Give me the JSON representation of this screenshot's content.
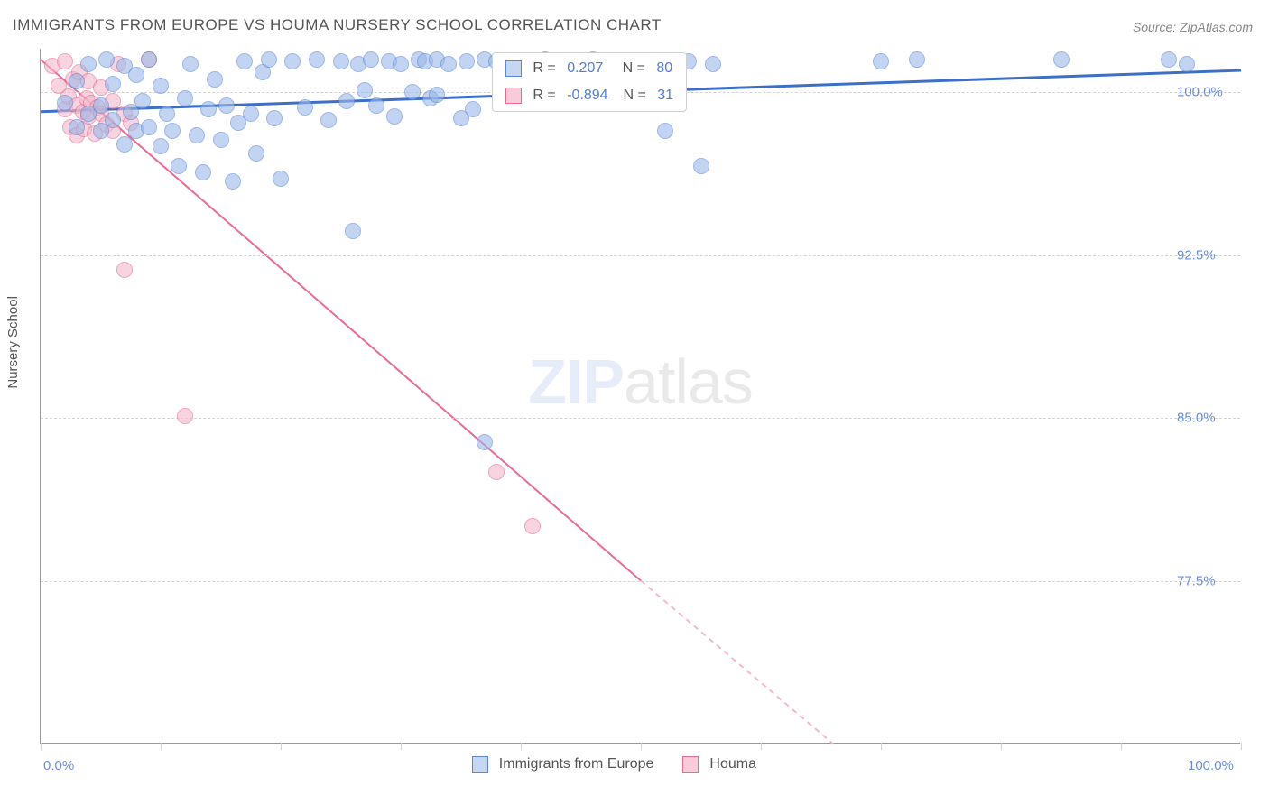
{
  "title": "IMMIGRANTS FROM EUROPE VS HOUMA NURSERY SCHOOL CORRELATION CHART",
  "source": "Source: ZipAtlas.com",
  "watermark": {
    "bold": "ZIP",
    "rest": "atlas"
  },
  "yaxis_label": "Nursery School",
  "plot": {
    "xlim": [
      0,
      100
    ],
    "ylim": [
      70,
      102
    ],
    "background": "#ffffff",
    "grid_color": "#d3d3d3",
    "axis_color": "#9a9a9a"
  },
  "yticks": [
    {
      "v": 77.5,
      "label": "77.5%"
    },
    {
      "v": 85.0,
      "label": "85.0%"
    },
    {
      "v": 92.5,
      "label": "92.5%"
    },
    {
      "v": 100.0,
      "label": "100.0%"
    }
  ],
  "xticks": [
    0,
    10,
    20,
    30,
    40,
    50,
    60,
    70,
    80,
    90,
    100
  ],
  "x_start_label": "0.0%",
  "x_end_label": "100.0%",
  "legend_stats": {
    "rows": [
      {
        "color_fill": "#c6d7f2",
        "color_border": "#5b87d6",
        "r_label": "R = ",
        "r_val": "0.207",
        "n_label": "   N = ",
        "n_val": "80",
        "val_color": "#4f7ed6"
      },
      {
        "color_fill": "#f7cbd9",
        "color_border": "#e86b94",
        "r_label": "R = ",
        "r_val": "-0.894",
        "n_label": "  N = ",
        "n_val": "31",
        "val_color": "#4f7ed6"
      }
    ],
    "left_pct": 37.7,
    "top_pct": 0.5
  },
  "legend_bottom": {
    "items": [
      {
        "color_fill": "#c6d7f2",
        "color_border": "#5b87d6",
        "label": "Immigrants from Europe"
      },
      {
        "color_fill": "#f7cbd9",
        "color_border": "#e86b94",
        "label": "Houma"
      }
    ]
  },
  "series": {
    "blue": {
      "fill": "#9bb9e8",
      "stroke": "#5b87d6",
      "opacity": 0.6,
      "r": 9,
      "trend": {
        "x1": 0,
        "y1": 99.1,
        "x2": 100,
        "y2": 101.0,
        "color": "#3d6fc9",
        "width": 3
      },
      "points": [
        [
          2,
          99.5
        ],
        [
          3,
          100.5
        ],
        [
          3,
          98.4
        ],
        [
          4,
          101.3
        ],
        [
          4,
          99.0
        ],
        [
          5,
          98.2
        ],
        [
          5,
          99.4
        ],
        [
          5.5,
          101.5
        ],
        [
          6,
          100.4
        ],
        [
          6,
          98.7
        ],
        [
          7,
          101.2
        ],
        [
          7,
          97.6
        ],
        [
          7.5,
          99.1
        ],
        [
          8,
          98.2
        ],
        [
          8,
          100.8
        ],
        [
          8.5,
          99.6
        ],
        [
          9,
          101.5
        ],
        [
          9,
          98.4
        ],
        [
          10,
          100.3
        ],
        [
          10,
          97.5
        ],
        [
          10.5,
          99.0
        ],
        [
          11,
          98.2
        ],
        [
          11.5,
          96.6
        ],
        [
          12,
          99.7
        ],
        [
          12.5,
          101.3
        ],
        [
          13,
          98.0
        ],
        [
          13.5,
          96.3
        ],
        [
          14,
          99.2
        ],
        [
          14.5,
          100.6
        ],
        [
          15,
          97.8
        ],
        [
          15.5,
          99.4
        ],
        [
          16,
          95.9
        ],
        [
          16.5,
          98.6
        ],
        [
          17,
          101.4
        ],
        [
          17.5,
          99.0
        ],
        [
          18,
          97.2
        ],
        [
          18.5,
          100.9
        ],
        [
          19,
          101.5
        ],
        [
          19.5,
          98.8
        ],
        [
          20,
          96.0
        ],
        [
          21,
          101.4
        ],
        [
          22,
          99.3
        ],
        [
          23,
          101.5
        ],
        [
          24,
          98.7
        ],
        [
          25,
          101.4
        ],
        [
          25.5,
          99.6
        ],
        [
          26,
          93.6
        ],
        [
          26.5,
          101.3
        ],
        [
          27,
          100.1
        ],
        [
          27.5,
          101.5
        ],
        [
          28,
          99.4
        ],
        [
          29,
          101.4
        ],
        [
          29.5,
          98.9
        ],
        [
          30,
          101.3
        ],
        [
          31,
          100.0
        ],
        [
          31.5,
          101.5
        ],
        [
          32,
          101.4
        ],
        [
          32.5,
          99.7
        ],
        [
          33,
          101.5
        ],
        [
          34,
          101.3
        ],
        [
          35,
          98.8
        ],
        [
          35.5,
          101.4
        ],
        [
          36,
          99.2
        ],
        [
          37,
          83.9
        ],
        [
          37,
          101.5
        ],
        [
          38,
          101.4
        ],
        [
          40,
          101.3
        ],
        [
          42,
          101.5
        ],
        [
          46,
          101.5
        ],
        [
          50,
          101.4
        ],
        [
          52,
          98.2
        ],
        [
          54,
          101.4
        ],
        [
          55,
          96.6
        ],
        [
          56,
          101.3
        ],
        [
          70,
          101.4
        ],
        [
          73,
          101.5
        ],
        [
          85,
          101.5
        ],
        [
          94,
          101.5
        ],
        [
          95.5,
          101.3
        ],
        [
          33,
          99.9
        ]
      ]
    },
    "pink": {
      "fill": "#f3b9cb",
      "stroke": "#e86b94",
      "opacity": 0.6,
      "r": 9,
      "trend_solid": {
        "x1": 0,
        "y1": 101.5,
        "x2": 50,
        "y2": 77.5,
        "color": "#eb6a95",
        "width": 2
      },
      "trend_dash": {
        "x1": 50,
        "y1": 77.5,
        "x2": 66,
        "y2": 70.0,
        "color": "#f3b9cb",
        "width": 2
      },
      "points": [
        [
          1,
          101.2
        ],
        [
          1.5,
          100.3
        ],
        [
          2,
          99.2
        ],
        [
          2,
          101.4
        ],
        [
          2.3,
          99.8
        ],
        [
          2.5,
          98.4
        ],
        [
          2.7,
          100.6
        ],
        [
          3,
          99.4
        ],
        [
          3,
          98.0
        ],
        [
          3.2,
          100.9
        ],
        [
          3.5,
          99.1
        ],
        [
          3.6,
          98.3
        ],
        [
          3.8,
          99.7
        ],
        [
          4,
          100.5
        ],
        [
          4,
          98.9
        ],
        [
          4.2,
          99.5
        ],
        [
          4.5,
          98.1
        ],
        [
          4.7,
          99.3
        ],
        [
          5,
          100.2
        ],
        [
          5,
          99.0
        ],
        [
          5.5,
          98.5
        ],
        [
          6,
          99.6
        ],
        [
          6,
          98.2
        ],
        [
          6.5,
          101.3
        ],
        [
          7,
          99.0
        ],
        [
          7.5,
          98.6
        ],
        [
          9,
          101.5
        ],
        [
          7,
          91.8
        ],
        [
          12,
          85.1
        ],
        [
          38,
          82.5
        ],
        [
          41,
          80.0
        ]
      ]
    }
  }
}
